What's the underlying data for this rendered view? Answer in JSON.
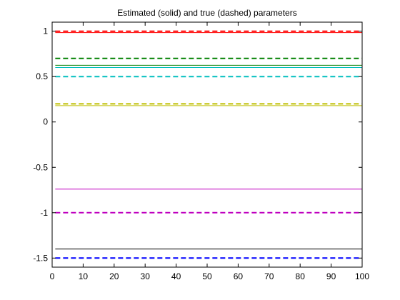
{
  "chart_data": {
    "type": "line",
    "title": "Estimated (solid) and true (dashed) parameters",
    "xlabel": "",
    "ylabel": "",
    "xlim": [
      0,
      100
    ],
    "ylim": [
      -1.6,
      1.1
    ],
    "grid": false,
    "legend": "none",
    "x_ticks": [
      0,
      10,
      20,
      30,
      40,
      50,
      60,
      70,
      80,
      90,
      100
    ],
    "y_ticks": [
      1,
      0.5,
      0,
      -0.5,
      -1,
      -1.5
    ],
    "x_tick_labels": [
      "0",
      "10",
      "20",
      "30",
      "40",
      "50",
      "60",
      "70",
      "80",
      "90",
      "100"
    ],
    "y_tick_labels": [
      "1",
      "0.5",
      "0",
      "-0.5",
      "-1",
      "-1.5"
    ],
    "x": [
      1,
      100
    ],
    "series": [
      {
        "style": "dashed",
        "color": "#ff0000",
        "values": [
          1.0,
          1.0
        ]
      },
      {
        "style": "solid",
        "color": "#ff0000",
        "values": [
          0.985,
          0.985
        ]
      },
      {
        "style": "dashed",
        "color": "#008000",
        "values": [
          0.7,
          0.7
        ]
      },
      {
        "style": "solid",
        "color": "#008000",
        "values": [
          0.625,
          0.625
        ]
      },
      {
        "style": "solid",
        "color": "#00bfbf",
        "values": [
          0.6,
          0.6
        ]
      },
      {
        "style": "dashed",
        "color": "#00bfbf",
        "values": [
          0.5,
          0.5
        ]
      },
      {
        "style": "dashed",
        "color": "#bfbf00",
        "values": [
          0.2,
          0.2
        ]
      },
      {
        "style": "solid",
        "color": "#bfbf00",
        "values": [
          0.18,
          0.18
        ]
      },
      {
        "style": "solid",
        "color": "#bf00bf",
        "values": [
          -0.74,
          -0.74
        ]
      },
      {
        "style": "dashed",
        "color": "#bf00bf",
        "values": [
          -1.0,
          -1.0
        ]
      },
      {
        "style": "solid",
        "color": "#000000",
        "values": [
          -1.4,
          -1.4
        ]
      },
      {
        "style": "dashed",
        "color": "#0000ff",
        "values": [
          -1.5,
          -1.5
        ]
      }
    ]
  }
}
